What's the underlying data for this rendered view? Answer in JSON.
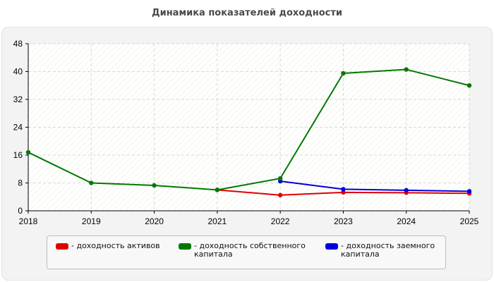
{
  "chart_data": {
    "type": "line",
    "title": "Динамика показателей доходности",
    "x": [
      "2018",
      "2019",
      "2020",
      "2021",
      "2022",
      "2023",
      "2024",
      "2025"
    ],
    "y_ticks": [
      0,
      8,
      16,
      24,
      32,
      40,
      48
    ],
    "ylim": [
      0,
      48
    ],
    "grid": true,
    "legend_position": "bottom",
    "series": [
      {
        "name": "доходность активов",
        "color": "#e00000",
        "values": [
          null,
          null,
          null,
          6.0,
          4.5,
          5.3,
          5.2,
          5.0
        ]
      },
      {
        "name": "доходность собственного капитала",
        "color": "#007a00",
        "values": [
          16.8,
          8.0,
          7.3,
          6.0,
          9.3,
          39.5,
          40.6,
          36.0
        ]
      },
      {
        "name": "доходность заемного капитала",
        "color": "#0000e0",
        "values": [
          null,
          null,
          null,
          null,
          8.5,
          6.2,
          5.9,
          5.6
        ]
      }
    ]
  },
  "legend": [
    {
      "label": "- доходность активов",
      "color": "#e00000"
    },
    {
      "label": "- доходность собственного\nкапитала",
      "color": "#007a00"
    },
    {
      "label": "- доходность заемного\nкапитала",
      "color": "#0000e0"
    }
  ]
}
